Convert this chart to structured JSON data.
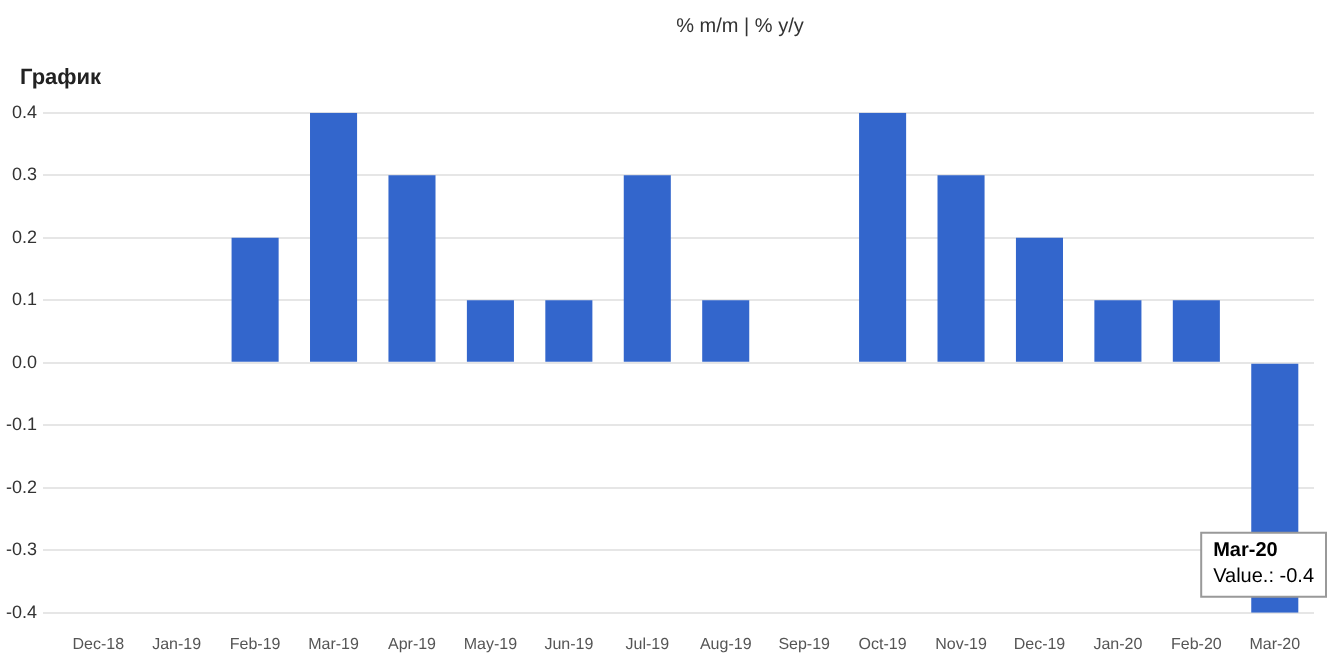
{
  "chart_data": {
    "type": "bar",
    "title": "График",
    "subtitle": "% m/m | % y/y",
    "categories": [
      "Dec-18",
      "Jan-19",
      "Feb-19",
      "Mar-19",
      "Apr-19",
      "May-19",
      "Jun-19",
      "Jul-19",
      "Aug-19",
      "Sep-19",
      "Oct-19",
      "Nov-19",
      "Dec-19",
      "Jan-20",
      "Feb-20",
      "Mar-20"
    ],
    "values": [
      0,
      0,
      0.2,
      0.4,
      0.3,
      0.1,
      0.1,
      0.3,
      0.1,
      0,
      0.4,
      0.3,
      0.2,
      0.1,
      0.1,
      -0.4
    ],
    "color": "#3366cc",
    "ylim": [
      -0.4,
      0.4
    ],
    "yticks": [
      {
        "value": -0.4,
        "label": "-0.4"
      },
      {
        "value": -0.3,
        "label": "-0.3"
      },
      {
        "value": -0.2,
        "label": "-0.2"
      },
      {
        "value": -0.1,
        "label": "-0.1"
      },
      {
        "value": 0,
        "label": "0.0"
      },
      {
        "value": 0.1,
        "label": "0.1"
      },
      {
        "value": 0.2,
        "label": "0.2"
      },
      {
        "value": 0.3,
        "label": "0.3"
      },
      {
        "value": 0.4,
        "label": "0.4"
      }
    ],
    "grid": "y",
    "annotations": [
      {
        "text": "Mar-20\nValue.: -0.4",
        "x": "Mar-20",
        "y": -0.4
      }
    ]
  }
}
